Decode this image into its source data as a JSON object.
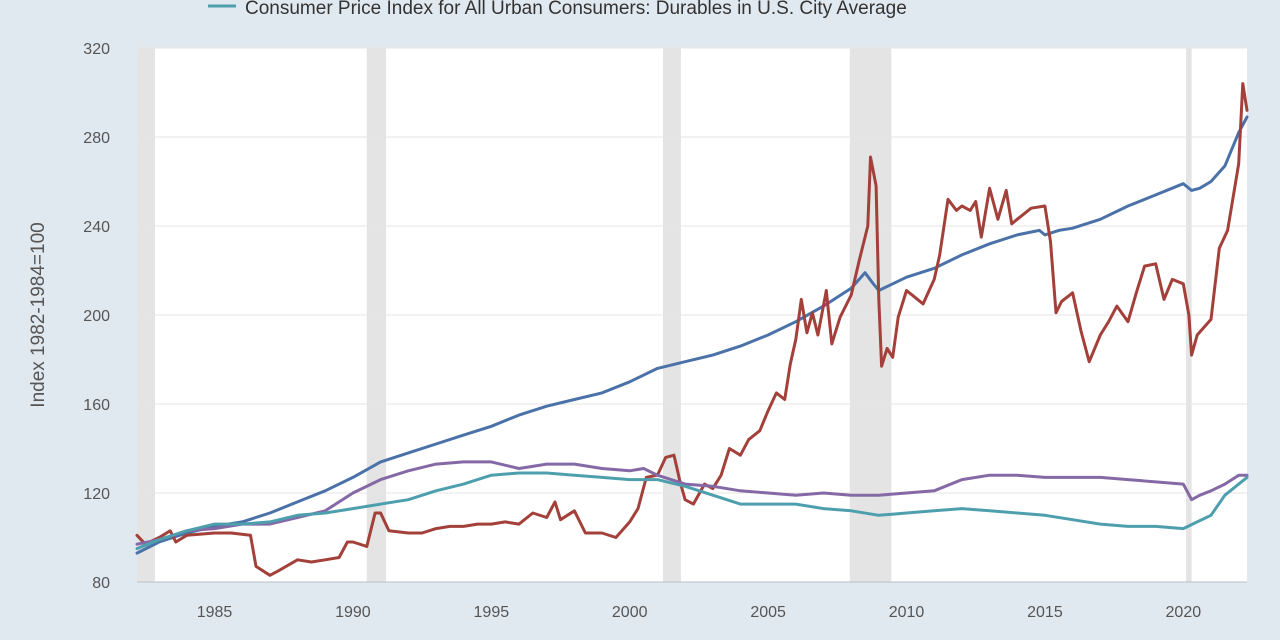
{
  "chart_data": {
    "type": "line",
    "title": "",
    "xlabel": "",
    "ylabel": "Index 1982-1984=100",
    "xlim": [
      1982.2,
      2022.3
    ],
    "ylim": [
      80,
      320
    ],
    "yticks": [
      80,
      120,
      160,
      200,
      240,
      280,
      320
    ],
    "xticks": [
      1985,
      1990,
      1995,
      2000,
      2005,
      2010,
      2015,
      2020
    ],
    "grid": "horizontal",
    "legend_position": "top",
    "legend": {
      "label": "Consumer Price Index for All Urban Consumers: Durables in U.S. City Average",
      "color": "#4e9fad"
    },
    "recessions": [
      [
        1981.55,
        1982.85
      ],
      [
        1990.5,
        1991.2
      ],
      [
        2001.2,
        2001.85
      ],
      [
        2007.95,
        2009.45
      ],
      [
        2020.1,
        2020.3
      ]
    ],
    "series": [
      {
        "color": "#4a72a8",
        "points": [
          [
            1982.2,
            93
          ],
          [
            1983,
            98
          ],
          [
            1984,
            102
          ],
          [
            1985,
            105
          ],
          [
            1986,
            107
          ],
          [
            1987,
            111
          ],
          [
            1988,
            116
          ],
          [
            1989,
            121
          ],
          [
            1990,
            127
          ],
          [
            1991,
            134
          ],
          [
            1992,
            138
          ],
          [
            1993,
            142
          ],
          [
            1994,
            146
          ],
          [
            1995,
            150
          ],
          [
            1996,
            155
          ],
          [
            1997,
            159
          ],
          [
            1998,
            162
          ],
          [
            1999,
            165
          ],
          [
            2000,
            170
          ],
          [
            2001,
            176
          ],
          [
            2002,
            179
          ],
          [
            2003,
            182
          ],
          [
            2004,
            186
          ],
          [
            2005,
            191
          ],
          [
            2006,
            197
          ],
          [
            2007,
            204
          ],
          [
            2008,
            212
          ],
          [
            2008.5,
            219
          ],
          [
            2008.8,
            214
          ],
          [
            2009,
            211
          ],
          [
            2010,
            217
          ],
          [
            2011,
            221
          ],
          [
            2012,
            227
          ],
          [
            2013,
            232
          ],
          [
            2014,
            236
          ],
          [
            2014.8,
            238
          ],
          [
            2015,
            236
          ],
          [
            2015.5,
            238
          ],
          [
            2016,
            239
          ],
          [
            2017,
            243
          ],
          [
            2018,
            249
          ],
          [
            2019,
            254
          ],
          [
            2020,
            259
          ],
          [
            2020.3,
            256
          ],
          [
            2020.6,
            257
          ],
          [
            2021,
            260
          ],
          [
            2021.5,
            267
          ],
          [
            2022,
            282
          ],
          [
            2022.3,
            289
          ]
        ]
      },
      {
        "color": "#a3403a",
        "points": [
          [
            1982.2,
            101
          ],
          [
            1982.5,
            97
          ],
          [
            1983,
            100
          ],
          [
            1983.4,
            103
          ],
          [
            1983.6,
            98
          ],
          [
            1984,
            101
          ],
          [
            1985,
            102
          ],
          [
            1985.6,
            102
          ],
          [
            1986.3,
            101
          ],
          [
            1986.5,
            87
          ],
          [
            1987,
            83
          ],
          [
            1987.3,
            85
          ],
          [
            1988,
            90
          ],
          [
            1988.5,
            89
          ],
          [
            1989,
            90
          ],
          [
            1989.5,
            91
          ],
          [
            1989.8,
            98
          ],
          [
            1990,
            98
          ],
          [
            1990.5,
            96
          ],
          [
            1990.8,
            111
          ],
          [
            1991,
            111
          ],
          [
            1991.3,
            103
          ],
          [
            1992,
            102
          ],
          [
            1992.5,
            102
          ],
          [
            1993,
            104
          ],
          [
            1993.5,
            105
          ],
          [
            1994,
            105
          ],
          [
            1994.5,
            106
          ],
          [
            1995,
            106
          ],
          [
            1995.5,
            107
          ],
          [
            1996,
            106
          ],
          [
            1996.5,
            111
          ],
          [
            1997,
            109
          ],
          [
            1997.3,
            116
          ],
          [
            1997.5,
            108
          ],
          [
            1998,
            112
          ],
          [
            1998.4,
            102
          ],
          [
            1999,
            102
          ],
          [
            1999.5,
            100
          ],
          [
            2000,
            107
          ],
          [
            2000.3,
            113
          ],
          [
            2000.6,
            127
          ],
          [
            2001,
            128
          ],
          [
            2001.3,
            136
          ],
          [
            2001.6,
            137
          ],
          [
            2001.8,
            126
          ],
          [
            2002,
            117
          ],
          [
            2002.3,
            115
          ],
          [
            2002.7,
            124
          ],
          [
            2003,
            122
          ],
          [
            2003.3,
            128
          ],
          [
            2003.6,
            140
          ],
          [
            2004,
            137
          ],
          [
            2004.3,
            144
          ],
          [
            2004.7,
            148
          ],
          [
            2005,
            157
          ],
          [
            2005.3,
            165
          ],
          [
            2005.6,
            162
          ],
          [
            2005.8,
            178
          ],
          [
            2006,
            189
          ],
          [
            2006.2,
            207
          ],
          [
            2006.4,
            192
          ],
          [
            2006.6,
            201
          ],
          [
            2006.8,
            191
          ],
          [
            2007.1,
            211
          ],
          [
            2007.3,
            187
          ],
          [
            2007.6,
            199
          ],
          [
            2008,
            209
          ],
          [
            2008.3,
            225
          ],
          [
            2008.6,
            240
          ],
          [
            2008.7,
            271
          ],
          [
            2008.9,
            258
          ],
          [
            2009,
            207
          ],
          [
            2009.1,
            177
          ],
          [
            2009.3,
            185
          ],
          [
            2009.5,
            181
          ],
          [
            2009.7,
            199
          ],
          [
            2010,
            211
          ],
          [
            2010.3,
            208
          ],
          [
            2010.6,
            205
          ],
          [
            2011,
            216
          ],
          [
            2011.2,
            227
          ],
          [
            2011.5,
            252
          ],
          [
            2011.8,
            247
          ],
          [
            2012,
            249
          ],
          [
            2012.3,
            247
          ],
          [
            2012.5,
            251
          ],
          [
            2012.7,
            235
          ],
          [
            2013,
            257
          ],
          [
            2013.3,
            243
          ],
          [
            2013.6,
            256
          ],
          [
            2013.8,
            241
          ],
          [
            2014,
            243
          ],
          [
            2014.5,
            248
          ],
          [
            2015,
            249
          ],
          [
            2015.2,
            233
          ],
          [
            2015.4,
            201
          ],
          [
            2015.6,
            206
          ],
          [
            2016,
            210
          ],
          [
            2016.3,
            193
          ],
          [
            2016.6,
            179
          ],
          [
            2017,
            191
          ],
          [
            2017.3,
            197
          ],
          [
            2017.6,
            204
          ],
          [
            2018,
            197
          ],
          [
            2018.3,
            210
          ],
          [
            2018.6,
            222
          ],
          [
            2019,
            223
          ],
          [
            2019.3,
            207
          ],
          [
            2019.6,
            216
          ],
          [
            2020,
            214
          ],
          [
            2020.2,
            200
          ],
          [
            2020.3,
            182
          ],
          [
            2020.5,
            191
          ],
          [
            2021,
            198
          ],
          [
            2021.3,
            230
          ],
          [
            2021.6,
            238
          ],
          [
            2022,
            268
          ],
          [
            2022.15,
            304
          ],
          [
            2022.3,
            292
          ]
        ]
      },
      {
        "color": "#8569a6",
        "points": [
          [
            1982.2,
            97
          ],
          [
            1983,
            99
          ],
          [
            1984,
            103
          ],
          [
            1985,
            104
          ],
          [
            1986,
            106
          ],
          [
            1987,
            106
          ],
          [
            1988,
            109
          ],
          [
            1989,
            112
          ],
          [
            1990,
            120
          ],
          [
            1991,
            126
          ],
          [
            1992,
            130
          ],
          [
            1993,
            133
          ],
          [
            1994,
            134
          ],
          [
            1995,
            134
          ],
          [
            1996,
            131
          ],
          [
            1997,
            133
          ],
          [
            1998,
            133
          ],
          [
            1999,
            131
          ],
          [
            2000,
            130
          ],
          [
            2000.5,
            131
          ],
          [
            2001,
            128
          ],
          [
            2002,
            124
          ],
          [
            2003,
            123
          ],
          [
            2004,
            121
          ],
          [
            2005,
            120
          ],
          [
            2006,
            119
          ],
          [
            2007,
            120
          ],
          [
            2008,
            119
          ],
          [
            2009,
            119
          ],
          [
            2010,
            120
          ],
          [
            2011,
            121
          ],
          [
            2012,
            126
          ],
          [
            2013,
            128
          ],
          [
            2014,
            128
          ],
          [
            2015,
            127
          ],
          [
            2016,
            127
          ],
          [
            2017,
            127
          ],
          [
            2018,
            126
          ],
          [
            2019,
            125
          ],
          [
            2020,
            124
          ],
          [
            2020.3,
            117
          ],
          [
            2020.6,
            119
          ],
          [
            2021,
            121
          ],
          [
            2021.5,
            124
          ],
          [
            2022,
            128
          ],
          [
            2022.3,
            128
          ]
        ]
      },
      {
        "color": "#4e9fad",
        "points": [
          [
            1982.2,
            95
          ],
          [
            1983,
            99
          ],
          [
            1984,
            103
          ],
          [
            1985,
            106
          ],
          [
            1986,
            106
          ],
          [
            1987,
            107
          ],
          [
            1988,
            110
          ],
          [
            1989,
            111
          ],
          [
            1990,
            113
          ],
          [
            1991,
            115
          ],
          [
            1992,
            117
          ],
          [
            1993,
            121
          ],
          [
            1994,
            124
          ],
          [
            1995,
            128
          ],
          [
            1996,
            129
          ],
          [
            1997,
            129
          ],
          [
            1998,
            128
          ],
          [
            1999,
            127
          ],
          [
            2000,
            126
          ],
          [
            2001,
            126
          ],
          [
            2002,
            123
          ],
          [
            2003,
            119
          ],
          [
            2004,
            115
          ],
          [
            2005,
            115
          ],
          [
            2006,
            115
          ],
          [
            2007,
            113
          ],
          [
            2008,
            112
          ],
          [
            2009,
            110
          ],
          [
            2010,
            111
          ],
          [
            2011,
            112
          ],
          [
            2012,
            113
          ],
          [
            2013,
            112
          ],
          [
            2014,
            111
          ],
          [
            2015,
            110
          ],
          [
            2016,
            108
          ],
          [
            2017,
            106
          ],
          [
            2018,
            105
          ],
          [
            2019,
            105
          ],
          [
            2020,
            104
          ],
          [
            2020.5,
            107
          ],
          [
            2021,
            110
          ],
          [
            2021.5,
            119
          ],
          [
            2022,
            124
          ],
          [
            2022.3,
            127
          ]
        ]
      }
    ]
  }
}
